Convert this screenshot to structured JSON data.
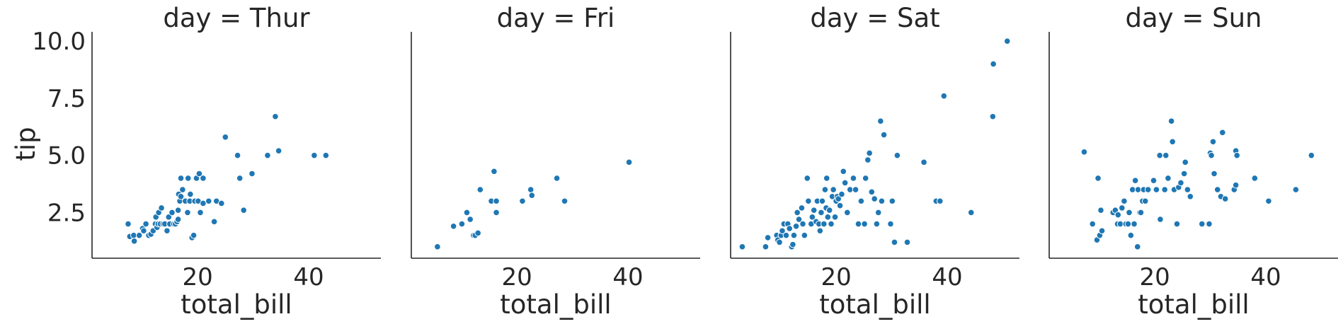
{
  "chart_data": {
    "type": "scatter",
    "xlabel": "total_bill",
    "ylabel": "tip",
    "xlim": [
      1,
      53
    ],
    "ylim": [
      0.5,
      10.5
    ],
    "xticks": [
      20,
      40
    ],
    "yticks": [
      2.5,
      5.0,
      7.5,
      10.0
    ],
    "ytick_labels": [
      "2.5",
      "5.0",
      "7.5",
      "10.0"
    ],
    "grid": false,
    "point_color": "#1f77b4",
    "facets": [
      {
        "title": "day = Thur",
        "points": [
          [
            7.5,
            2.0
          ],
          [
            7.8,
            1.45
          ],
          [
            8.5,
            1.5
          ],
          [
            8.6,
            1.25
          ],
          [
            9.5,
            1.5
          ],
          [
            10.1,
            1.8
          ],
          [
            10.3,
            1.7
          ],
          [
            10.7,
            2.0
          ],
          [
            11.2,
            1.5
          ],
          [
            11.6,
            1.55
          ],
          [
            12.0,
            1.7
          ],
          [
            12.4,
            2.0
          ],
          [
            12.5,
            2.3
          ],
          [
            12.7,
            1.85
          ],
          [
            12.9,
            2.0
          ],
          [
            13.0,
            2.5
          ],
          [
            13.3,
            2.0
          ],
          [
            13.5,
            2.7
          ],
          [
            13.8,
            2.0
          ],
          [
            14.1,
            2.0
          ],
          [
            14.5,
            1.7
          ],
          [
            14.8,
            2.3
          ],
          [
            15.0,
            2.0
          ],
          [
            15.4,
            2.5
          ],
          [
            15.7,
            2.0
          ],
          [
            16.0,
            2.0
          ],
          [
            16.3,
            2.1
          ],
          [
            16.5,
            2.2
          ],
          [
            16.5,
            2.6
          ],
          [
            16.6,
            3.3
          ],
          [
            16.8,
            3.0
          ],
          [
            17.0,
            3.2
          ],
          [
            17.0,
            4.0
          ],
          [
            17.3,
            3.5
          ],
          [
            17.8,
            3.0
          ],
          [
            18.2,
            2.5
          ],
          [
            18.3,
            4.0
          ],
          [
            18.6,
            3.0
          ],
          [
            18.7,
            3.3
          ],
          [
            19.0,
            1.4
          ],
          [
            19.3,
            1.5
          ],
          [
            19.5,
            3.0
          ],
          [
            19.8,
            4.0
          ],
          [
            20.1,
            3.0
          ],
          [
            20.3,
            4.2
          ],
          [
            20.5,
            2.5
          ],
          [
            21.0,
            4.0
          ],
          [
            21.0,
            2.9
          ],
          [
            22.0,
            3.0
          ],
          [
            23.0,
            2.1
          ],
          [
            23.4,
            3.0
          ],
          [
            24.3,
            2.9
          ],
          [
            25.0,
            5.8
          ],
          [
            27.2,
            5.0
          ],
          [
            27.6,
            4.0
          ],
          [
            28.3,
            2.6
          ],
          [
            29.8,
            4.2
          ],
          [
            32.6,
            5.0
          ],
          [
            34.0,
            6.7
          ],
          [
            34.6,
            5.2
          ],
          [
            41.0,
            5.0
          ],
          [
            43.1,
            5.0
          ]
        ]
      },
      {
        "title": "day = Fri",
        "points": [
          [
            5.7,
            1.0
          ],
          [
            8.6,
            1.9
          ],
          [
            10.1,
            2.0
          ],
          [
            11.0,
            2.5
          ],
          [
            11.6,
            2.2
          ],
          [
            12.2,
            1.5
          ],
          [
            12.5,
            1.5
          ],
          [
            13.0,
            1.6
          ],
          [
            13.4,
            3.5
          ],
          [
            15.4,
            3.0
          ],
          [
            15.9,
            4.3
          ],
          [
            16.3,
            3.0
          ],
          [
            16.3,
            2.5
          ],
          [
            21.0,
            3.0
          ],
          [
            22.5,
            3.5
          ],
          [
            22.7,
            3.25
          ],
          [
            27.2,
            4.0
          ],
          [
            28.6,
            3.0
          ],
          [
            40.2,
            4.7
          ]
        ]
      },
      {
        "title": "day = Sat",
        "points": [
          [
            3.1,
            1.0
          ],
          [
            7.3,
            1.0
          ],
          [
            7.7,
            1.4
          ],
          [
            9.3,
            1.5
          ],
          [
            9.5,
            1.3
          ],
          [
            9.8,
            1.2
          ],
          [
            10.1,
            1.5
          ],
          [
            10.3,
            1.7
          ],
          [
            10.6,
            2.0
          ],
          [
            11.0,
            1.5
          ],
          [
            11.3,
            2.0
          ],
          [
            11.6,
            1.8
          ],
          [
            12.0,
            1.0
          ],
          [
            12.2,
            1.1
          ],
          [
            12.4,
            1.5
          ],
          [
            12.8,
            1.9
          ],
          [
            13.0,
            2.5
          ],
          [
            13.3,
            2.2
          ],
          [
            13.8,
            2.7
          ],
          [
            14.0,
            2.0
          ],
          [
            14.3,
            1.5
          ],
          [
            14.8,
            4.0
          ],
          [
            15.0,
            3.0
          ],
          [
            15.5,
            2.0
          ],
          [
            15.7,
            2.3
          ],
          [
            16.0,
            2.6
          ],
          [
            16.4,
            2.1
          ],
          [
            16.6,
            3.0
          ],
          [
            16.9,
            2.0
          ],
          [
            17.1,
            1.7
          ],
          [
            17.3,
            2.5
          ],
          [
            17.5,
            3.0
          ],
          [
            17.8,
            2.0
          ],
          [
            18.0,
            3.5
          ],
          [
            18.2,
            2.7
          ],
          [
            18.3,
            4.0
          ],
          [
            18.5,
            2.3
          ],
          [
            18.8,
            2.6
          ],
          [
            19.1,
            2.0
          ],
          [
            19.3,
            3.2
          ],
          [
            19.5,
            3.5
          ],
          [
            19.8,
            2.3
          ],
          [
            20.0,
            3.0
          ],
          [
            20.2,
            3.2
          ],
          [
            20.4,
            3.1
          ],
          [
            20.7,
            2.8
          ],
          [
            21.0,
            3.3
          ],
          [
            21.3,
            4.3
          ],
          [
            21.6,
            3.8
          ],
          [
            22.0,
            2.5
          ],
          [
            22.5,
            3.5
          ],
          [
            23.1,
            4.0
          ],
          [
            23.5,
            3.5
          ],
          [
            24.0,
            2.0
          ],
          [
            24.5,
            3.0
          ],
          [
            25.1,
            2.0
          ],
          [
            25.3,
            4.0
          ],
          [
            25.7,
            4.8
          ],
          [
            26.0,
            5.1
          ],
          [
            26.4,
            3.4
          ],
          [
            26.9,
            3.1
          ],
          [
            27.3,
            2.0
          ],
          [
            27.6,
            2.5
          ],
          [
            28.0,
            6.5
          ],
          [
            28.2,
            3.0
          ],
          [
            28.6,
            5.9
          ],
          [
            29.8,
            2.0
          ],
          [
            30.1,
            3.0
          ],
          [
            30.5,
            1.2
          ],
          [
            31.0,
            5.0
          ],
          [
            32.8,
            1.2
          ],
          [
            35.8,
            4.7
          ],
          [
            38.0,
            3.0
          ],
          [
            38.7,
            3.0
          ],
          [
            39.4,
            7.6
          ],
          [
            44.3,
            2.5
          ],
          [
            48.3,
            9.0
          ],
          [
            48.2,
            6.7
          ],
          [
            50.8,
            10.0
          ]
        ]
      },
      {
        "title": "day = Sun",
        "points": [
          [
            7.3,
            5.15
          ],
          [
            8.8,
            2.0
          ],
          [
            9.6,
            1.3
          ],
          [
            9.8,
            4.0
          ],
          [
            10.1,
            1.5
          ],
          [
            10.3,
            2.6
          ],
          [
            10.5,
            1.7
          ],
          [
            12.5,
            2.5
          ],
          [
            12.9,
            2.6
          ],
          [
            13.3,
            2.0
          ],
          [
            13.4,
            2.4
          ],
          [
            13.8,
            2.0
          ],
          [
            14.1,
            2.7
          ],
          [
            14.5,
            3.0
          ],
          [
            14.8,
            2.0
          ],
          [
            15.2,
            2.0
          ],
          [
            15.4,
            2.5
          ],
          [
            15.7,
            1.5
          ],
          [
            16.0,
            3.5
          ],
          [
            16.3,
            2.0
          ],
          [
            16.5,
            3.9
          ],
          [
            16.9,
            1.0
          ],
          [
            17.0,
            3.5
          ],
          [
            17.3,
            2.5
          ],
          [
            17.5,
            2.5
          ],
          [
            17.8,
            3.0
          ],
          [
            18.0,
            3.5
          ],
          [
            18.3,
            3.0
          ],
          [
            18.8,
            3.5
          ],
          [
            19.8,
            3.9
          ],
          [
            20.3,
            3.5
          ],
          [
            20.9,
            5.0
          ],
          [
            21.0,
            2.2
          ],
          [
            21.8,
            3.5
          ],
          [
            22.0,
            5.0
          ],
          [
            22.4,
            4.0
          ],
          [
            23.0,
            6.5
          ],
          [
            23.2,
            5.6
          ],
          [
            23.5,
            3.5
          ],
          [
            24.0,
            2.0
          ],
          [
            24.3,
            3.6
          ],
          [
            24.7,
            3.8
          ],
          [
            25.3,
            4.2
          ],
          [
            25.5,
            4.7
          ],
          [
            25.9,
            3.5
          ],
          [
            26.4,
            3.2
          ],
          [
            28.5,
            2.0
          ],
          [
            29.8,
            2.0
          ],
          [
            30.0,
            5.1
          ],
          [
            30.2,
            5.0
          ],
          [
            30.5,
            5.6
          ],
          [
            30.7,
            4.2
          ],
          [
            31.3,
            3.5
          ],
          [
            31.9,
            3.2
          ],
          [
            32.2,
            6.0
          ],
          [
            32.7,
            3.1
          ],
          [
            34.3,
            3.5
          ],
          [
            34.6,
            5.2
          ],
          [
            34.6,
            3.7
          ],
          [
            34.8,
            5.0
          ],
          [
            38.0,
            4.0
          ],
          [
            40.5,
            3.0
          ],
          [
            45.4,
            3.5
          ],
          [
            48.2,
            5.0
          ]
        ]
      }
    ]
  }
}
